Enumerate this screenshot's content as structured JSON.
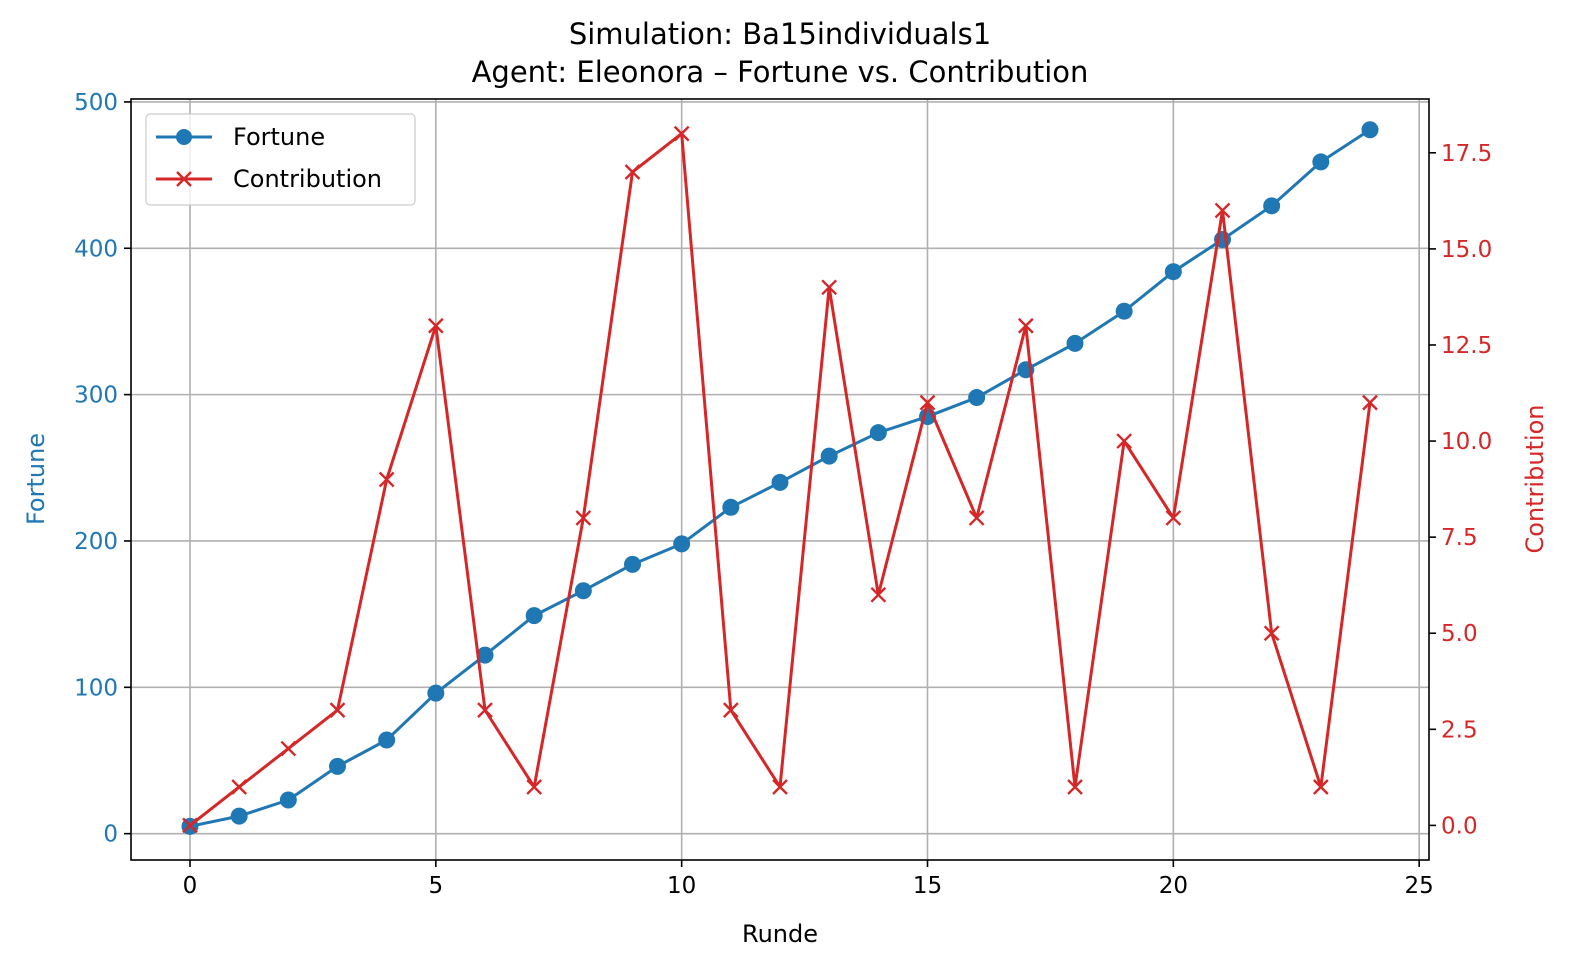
{
  "chart_data": {
    "type": "line",
    "title": "Simulation: Ba15individuals1",
    "subtitle": "Agent: Eleonora – Fortune vs. Contribution",
    "xlabel": "Runde",
    "ylabel": "Fortune",
    "ylabel_right": "Contribution",
    "xlim": [
      -1.2,
      25.2
    ],
    "ylim": [
      -18,
      502
    ],
    "ylim_right": [
      -0.9,
      18.9
    ],
    "x_ticks": [
      0,
      5,
      10,
      15,
      20,
      25
    ],
    "x_tick_labels": [
      "0",
      "5",
      "10",
      "15",
      "20",
      "25"
    ],
    "y_ticks": [
      0,
      100,
      200,
      300,
      400,
      500
    ],
    "y_tick_labels": [
      "0",
      "100",
      "200",
      "300",
      "400",
      "500"
    ],
    "y_ticks_right": [
      0,
      2.5,
      5,
      7.5,
      10,
      12.5,
      15,
      17.5
    ],
    "y_tick_labels_right": [
      "0.0",
      "2.5",
      "5.0",
      "7.5",
      "10.0",
      "12.5",
      "15.0",
      "17.5"
    ],
    "grid": true,
    "legend_position": "top-left",
    "x": [
      0,
      1,
      2,
      3,
      4,
      5,
      6,
      7,
      8,
      9,
      10,
      11,
      12,
      13,
      14,
      15,
      16,
      17,
      18,
      19,
      20,
      21,
      22,
      23,
      24
    ],
    "series": [
      {
        "name": "Fortune",
        "axis": "left",
        "marker": "circle",
        "color": "#1f77b4",
        "values": [
          5,
          12,
          23,
          46,
          64,
          96,
          122,
          149,
          166,
          184,
          198,
          223,
          240,
          258,
          274,
          285,
          298,
          317,
          335,
          357,
          384,
          406,
          429,
          459,
          481
        ]
      },
      {
        "name": "Contribution",
        "axis": "right",
        "marker": "x",
        "color": "#d62728",
        "values": [
          0,
          1,
          2,
          3,
          9,
          13,
          3,
          1,
          8,
          17,
          18,
          3,
          1,
          14,
          6,
          11,
          8,
          13,
          1,
          10,
          8,
          16,
          5,
          1,
          11
        ]
      }
    ]
  }
}
